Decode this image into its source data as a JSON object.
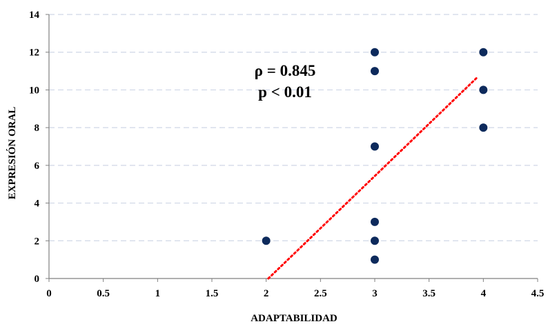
{
  "chart_data": {
    "type": "scatter",
    "title": "",
    "xlabel": "ADAPTABILIDAD",
    "ylabel": "EXPRESIÓN ORAL",
    "xlim": [
      0,
      4.5
    ],
    "ylim": [
      0,
      14
    ],
    "x_ticks": [
      "0",
      "0.5",
      "1",
      "1.5",
      "2",
      "2.5",
      "3",
      "3.5",
      "4",
      "4.5"
    ],
    "y_ticks": [
      "0",
      "2",
      "4",
      "6",
      "8",
      "10",
      "12",
      "14"
    ],
    "grid": "horizontal dashed",
    "points": [
      {
        "x": 2,
        "y": 2
      },
      {
        "x": 3,
        "y": 12
      },
      {
        "x": 3,
        "y": 11
      },
      {
        "x": 3,
        "y": 7
      },
      {
        "x": 3,
        "y": 3
      },
      {
        "x": 3,
        "y": 2
      },
      {
        "x": 3,
        "y": 1
      },
      {
        "x": 4,
        "y": 12
      },
      {
        "x": 4,
        "y": 10
      },
      {
        "x": 4,
        "y": 8
      }
    ],
    "trendline": {
      "type": "linear",
      "style": "dotted",
      "x_start": 2.02,
      "y_start": 0,
      "x_end": 3.95,
      "y_end": 10.7
    },
    "annotations": [
      "ρ = 0.845",
      "p < 0.01"
    ],
    "colors": {
      "points": "#0d2a5c",
      "trendline": "#ff0000",
      "grid": "#cfd6e6",
      "axis": "#7f7f7f"
    }
  }
}
